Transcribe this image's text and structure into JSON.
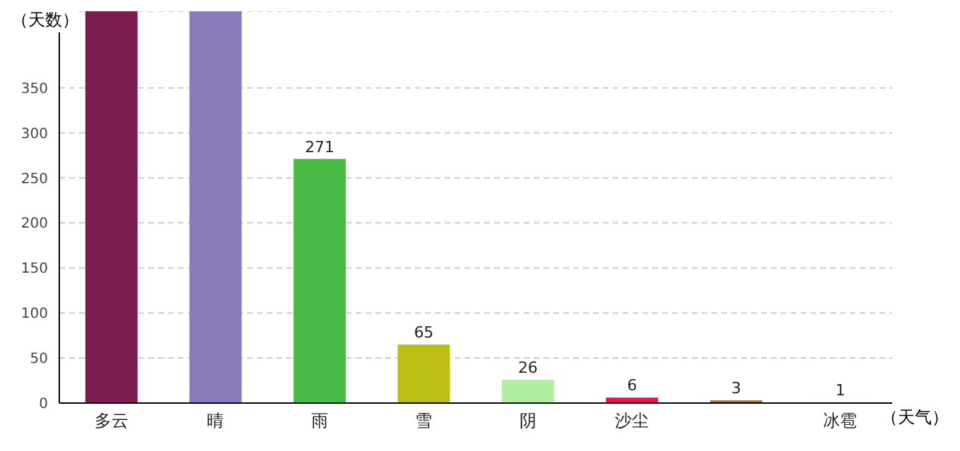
{
  "chart_data": {
    "type": "bar",
    "xlabel": "（天气）",
    "ylabel": "（天数）",
    "categories": [
      "多云",
      "晴",
      "雨",
      "雪",
      "阴",
      "沙尘",
      null,
      "冰雹"
    ],
    "values": [
      435,
      435,
      271,
      65,
      26,
      6,
      3,
      1
    ],
    "colors": [
      "#7b1c4e",
      "#8c7bba",
      "#4aba46",
      "#bcbf12",
      "#b0f0a0",
      "#e0154e",
      "#9b6b2a",
      "#aaf0f0"
    ],
    "value_labels": [
      null,
      null,
      "271",
      "65",
      "26",
      "6",
      "3",
      "1"
    ],
    "ylim": [
      0,
      435
    ],
    "yticks": [
      0,
      50,
      100,
      150,
      200,
      250,
      300,
      350
    ],
    "grid": "y"
  }
}
